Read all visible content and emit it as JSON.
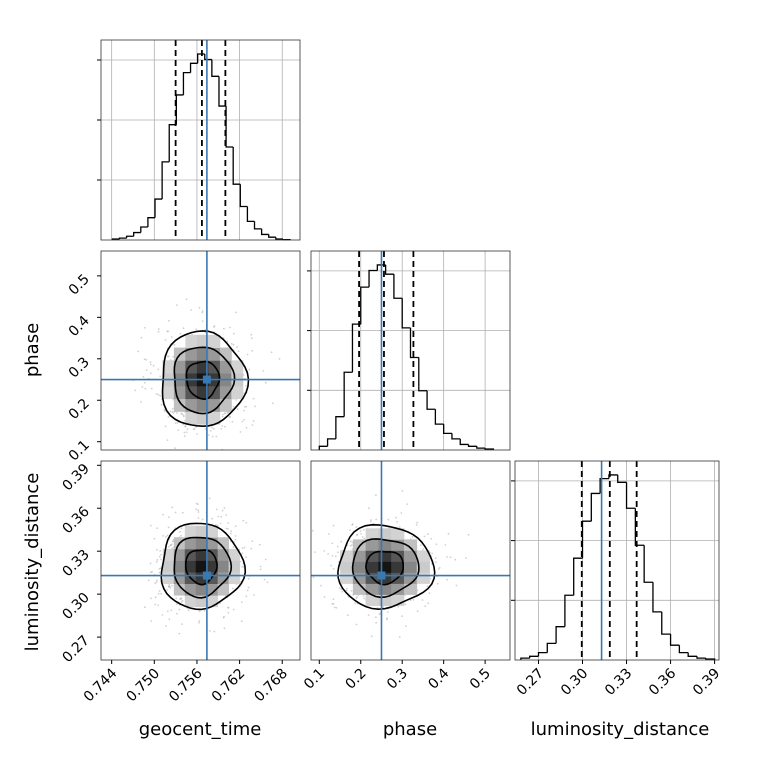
{
  "chart_data": {
    "type": "corner",
    "parameters": [
      "geocent_time",
      "phase",
      "luminosity_distance"
    ],
    "axes": {
      "geocent_time": {
        "label": "geocent_time",
        "range": [
          0.7425,
          0.7705
        ],
        "ticks": [
          0.744,
          0.75,
          0.756,
          0.762,
          0.768
        ],
        "tick_labels": [
          "0.744",
          "0.750",
          "0.756",
          "0.762",
          "0.768"
        ]
      },
      "phase": {
        "label": "phase",
        "range": [
          0.08,
          0.56
        ],
        "ticks": [
          0.1,
          0.2,
          0.3,
          0.4,
          0.5
        ],
        "tick_labels": [
          "0.1",
          "0.2",
          "0.3",
          "0.4",
          "0.5"
        ]
      },
      "luminosity_distance": {
        "label": "luminosity_distance",
        "range": [
          0.254,
          0.393
        ],
        "ticks": [
          0.27,
          0.3,
          0.33,
          0.36,
          0.39
        ],
        "tick_labels": [
          "0.27",
          "0.30",
          "0.33",
          "0.36",
          "0.39"
        ]
      }
    },
    "truths": {
      "geocent_time": 0.7574,
      "phase": 0.25,
      "luminosity_distance": 0.313
    },
    "quantiles": {
      "geocent_time": [
        0.753,
        0.7567,
        0.76
      ],
      "phase": [
        0.196,
        0.256,
        0.327
      ],
      "luminosity_distance": [
        0.2995,
        0.3186,
        0.3369
      ]
    },
    "histograms": {
      "geocent_time": {
        "bin_edges": [
          0.7441,
          0.7451,
          0.7461,
          0.7471,
          0.7481,
          0.7491,
          0.7501,
          0.7511,
          0.7521,
          0.7531,
          0.7541,
          0.7551,
          0.7561,
          0.7571,
          0.7581,
          0.7591,
          0.7601,
          0.7611,
          0.7621,
          0.7631,
          0.7641,
          0.7651,
          0.7661,
          0.7671,
          0.7681,
          0.7691
        ],
        "counts": [
          0.5,
          1,
          2,
          4,
          7,
          12,
          22,
          42,
          62,
          78,
          90,
          95,
          100,
          97,
          88,
          72,
          50,
          30,
          18,
          10,
          6,
          3,
          1.5,
          0.5,
          0.2
        ]
      },
      "phase": {
        "bin_edges": [
          0.1,
          0.12,
          0.14,
          0.16,
          0.18,
          0.2,
          0.22,
          0.24,
          0.26,
          0.28,
          0.3,
          0.32,
          0.34,
          0.36,
          0.38,
          0.4,
          0.42,
          0.44,
          0.46,
          0.48,
          0.5,
          0.52
        ],
        "counts": [
          2,
          6,
          18,
          42,
          68,
          88,
          97,
          100,
          95,
          82,
          66,
          50,
          32,
          22,
          14,
          9,
          6,
          3,
          2,
          1,
          0.5
        ]
      },
      "luminosity_distance": {
        "bin_edges": [
          0.258,
          0.264,
          0.27,
          0.276,
          0.282,
          0.288,
          0.294,
          0.3,
          0.306,
          0.312,
          0.318,
          0.324,
          0.33,
          0.336,
          0.342,
          0.348,
          0.354,
          0.36,
          0.366,
          0.372,
          0.378,
          0.384,
          0.39
        ],
        "counts": [
          1,
          2,
          4,
          9,
          18,
          35,
          55,
          75,
          90,
          98,
          100,
          96,
          82,
          62,
          42,
          26,
          14,
          8,
          4,
          2,
          1,
          0.5
        ]
      }
    },
    "joint": [
      {
        "x": "geocent_time",
        "y": "phase",
        "center": [
          0.7568,
          0.25
        ],
        "contour_half_widths": [
          [
            0.0023,
            0.045
          ],
          [
            0.0042,
            0.08
          ],
          [
            0.006,
            0.115
          ]
        ]
      },
      {
        "x": "geocent_time",
        "y": "luminosity_distance",
        "center": [
          0.7566,
          0.3195
        ],
        "contour_half_widths": [
          [
            0.0022,
            0.012
          ],
          [
            0.004,
            0.021
          ],
          [
            0.0058,
            0.03
          ]
        ]
      },
      {
        "x": "phase",
        "y": "luminosity_distance",
        "center": [
          0.258,
          0.319
        ],
        "contour_half_widths": [
          [
            0.045,
            0.0115
          ],
          [
            0.08,
            0.02
          ],
          [
            0.115,
            0.029
          ]
        ]
      }
    ]
  }
}
